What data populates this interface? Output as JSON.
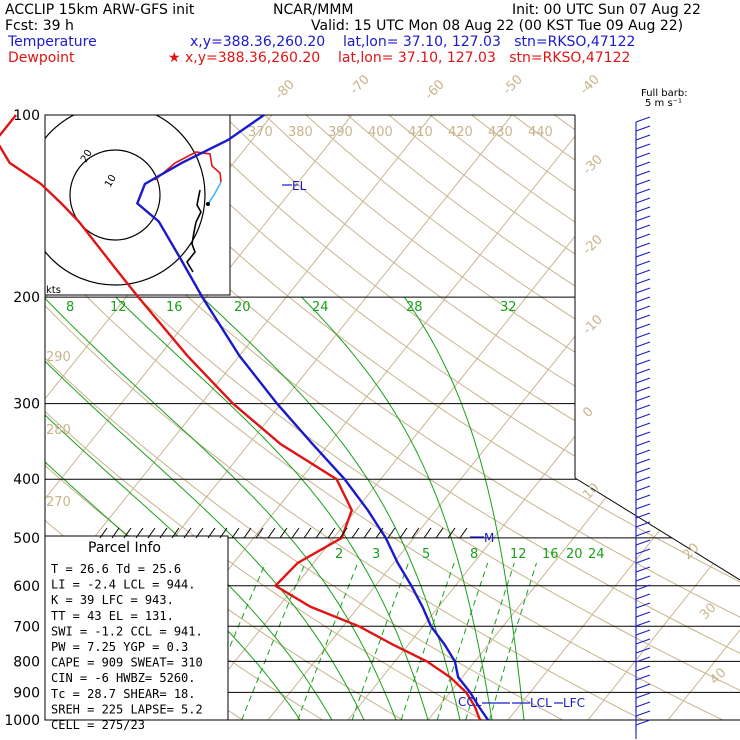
{
  "header": {
    "line1_left": "ACCLIP 15km ARW-GFS init",
    "line1_mid": "NCAR/MMM",
    "line1_right": "Init: 00 UTC Sun 07 Aug 22",
    "line2_left": "Fcst:   39 h",
    "line2_right": "Valid: 15 UTC Mon 08 Aug 22 (00 KST Tue 09 Aug 22)",
    "temperature_label": "Temperature",
    "temperature_info": "x,y=388.36,260.20    lat,lon= 37.10, 127.03   stn=RKSO,47122",
    "dewpoint_label": "Dewpoint",
    "dewpoint_info": "★ x,y=388.36,260.20    lat,lon= 37.10, 127.03   stn=RKSO,47122"
  },
  "barb_legend": {
    "title": "Full barb:",
    "value": "5 m s⁻¹"
  },
  "hodograph": {
    "ring_inner": "10",
    "ring_outer": "20",
    "units": "kts"
  },
  "parcel_info": {
    "title": "Parcel Info",
    "rows": [
      "T  =   26.6  Td =  25.6",
      "LI =   -2.4  LCL =  944.",
      "K  =     39  LFC =  943.",
      "TT =     43  EL  =  131.",
      "SWI =  -1.2  CCL =  941.",
      "PW =   7.25  YGP =   0.3",
      "CAPE =  909  SWEAT=  310",
      "CIN =    -6  HWBZ= 5260.",
      "Tc =   28.7  SHEAR=  18.",
      "SREH =  225  LAPSE=  5.2",
      "CELL = 275/23"
    ]
  },
  "annotations": {
    "el": "EL",
    "m": "M",
    "ccl": "CCL",
    "lcl": "LCL",
    "lfc": "LFC"
  },
  "colors": {
    "temperature": "#1a1acc",
    "dewpoint": "#e01414",
    "isotherm": "#c8b48c",
    "dry_adiabat": "#c8b48c",
    "moist_adiabat": "#1aa01a",
    "mixing_ratio": "#1aa01a",
    "barb": "#1a1acc"
  },
  "chart_data": {
    "type": "line",
    "title": "",
    "xlabel": "",
    "ylabel": "",
    "y_axis": {
      "scale": "log",
      "unit": "hPa",
      "ticks": [
        100,
        200,
        300,
        400,
        500,
        600,
        700,
        800,
        900,
        1000
      ]
    },
    "isotherm_labels": [
      "-80",
      "-70",
      "-60",
      "-50",
      "-40",
      "-30",
      "-20",
      "-10",
      "0",
      "10",
      "20",
      "30",
      "40"
    ],
    "theta_labels": [
      "370",
      "380",
      "390",
      "400",
      "410",
      "420",
      "430",
      "440"
    ],
    "theta_low_labels": [
      "290",
      "280",
      "270"
    ],
    "mid_labels": [
      "8",
      "12",
      "16",
      "20",
      "24",
      "28",
      "32"
    ],
    "mixing_ratio_labels": [
      "2",
      "3",
      "5",
      "8",
      "12",
      "16",
      "20",
      "24"
    ],
    "series": [
      {
        "name": "Temperature",
        "color": "#1a1acc",
        "pressure": [
          1000,
          950,
          900,
          850,
          800,
          750,
          700,
          650,
          600,
          550,
          500,
          450,
          400,
          350,
          300,
          250,
          200,
          175,
          150,
          140,
          130,
          120,
          110,
          100
        ],
        "temperature": [
          27.5,
          25.0,
          22.5,
          19.5,
          17.5,
          14.5,
          11.0,
          8.0,
          4.5,
          0.5,
          -3.5,
          -8.5,
          -14.5,
          -22.0,
          -30.5,
          -40.0,
          -50.5,
          -56.5,
          -63.5,
          -68.0,
          -69.0,
          -66.5,
          -63.0,
          -61.0
        ]
      },
      {
        "name": "Dewpoint",
        "color": "#e01414",
        "pressure": [
          1000,
          950,
          900,
          850,
          800,
          750,
          700,
          650,
          600,
          550,
          500,
          450,
          400,
          350,
          300,
          250,
          200,
          175,
          150,
          140,
          130,
          120,
          110,
          100
        ],
        "temperature": [
          26.5,
          24.5,
          22.0,
          18.5,
          14.0,
          8.0,
          2.0,
          -6.0,
          -12.5,
          -12.0,
          -9.0,
          -10.5,
          -15.5,
          -26.0,
          -36.0,
          -46.5,
          -58.5,
          -65.5,
          -73.5,
          -77.5,
          -82.0,
          -88.0,
          -92.0,
          -92.0
        ]
      }
    ],
    "grid": true,
    "legend": "top-left"
  }
}
